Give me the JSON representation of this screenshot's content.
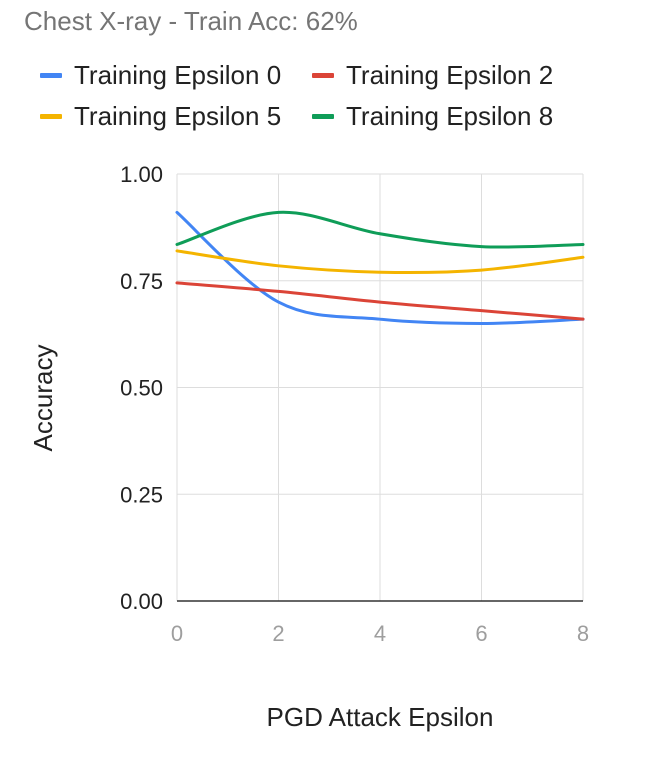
{
  "chart_data": {
    "type": "line",
    "title": "Chest X-ray - Train Acc: 62%",
    "xlabel": "PGD Attack Epsilon",
    "ylabel": "Accuracy",
    "xlim": [
      0,
      8
    ],
    "ylim": [
      0,
      1
    ],
    "x_ticks": [
      "0",
      "2",
      "4",
      "6",
      "8"
    ],
    "y_ticks": [
      "0.00",
      "0.25",
      "0.50",
      "0.75",
      "1.00"
    ],
    "grid": true,
    "legend_position": "top",
    "x": [
      0,
      2,
      4,
      6,
      8
    ],
    "series": [
      {
        "name": "Training Epsilon 0",
        "color": "#4285F4",
        "values": [
          0.91,
          0.7,
          0.66,
          0.65,
          0.66
        ]
      },
      {
        "name": "Training Epsilon 2",
        "color": "#DB4437",
        "values": [
          0.745,
          0.725,
          0.7,
          0.68,
          0.66
        ]
      },
      {
        "name": "Training Epsilon 5",
        "color": "#F4B400",
        "values": [
          0.82,
          0.785,
          0.77,
          0.775,
          0.805
        ]
      },
      {
        "name": "Training Epsilon 8",
        "color": "#0F9D58",
        "values": [
          0.835,
          0.91,
          0.86,
          0.83,
          0.835
        ]
      }
    ]
  }
}
